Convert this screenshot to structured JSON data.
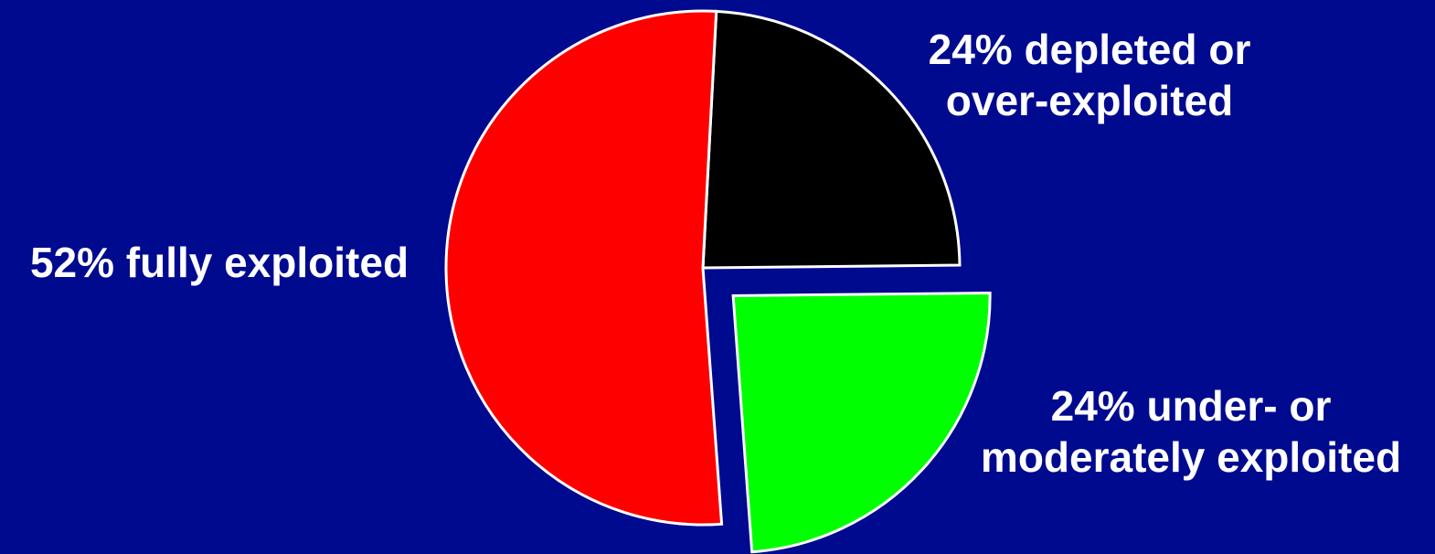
{
  "chart_data": {
    "type": "pie",
    "start_angle_deg": 3,
    "direction": "clockwise",
    "slices": [
      {
        "name": "depleted or over-exploited",
        "value": 24,
        "color": "#000000",
        "exploded": false,
        "label_lines": [
          "24% depleted or",
          "over-exploited"
        ]
      },
      {
        "name": "under- or moderately exploited",
        "value": 24,
        "color": "#00ff00",
        "exploded": true,
        "label_lines": [
          "24% under- or",
          "moderately exploited"
        ]
      },
      {
        "name": "fully exploited",
        "value": 52,
        "color": "#ff0000",
        "exploded": false,
        "label_lines": [
          "52% fully exploited"
        ]
      }
    ]
  },
  "background_color": "#000a8f",
  "border_color": "#ffffff",
  "label_color": "#ffffff"
}
